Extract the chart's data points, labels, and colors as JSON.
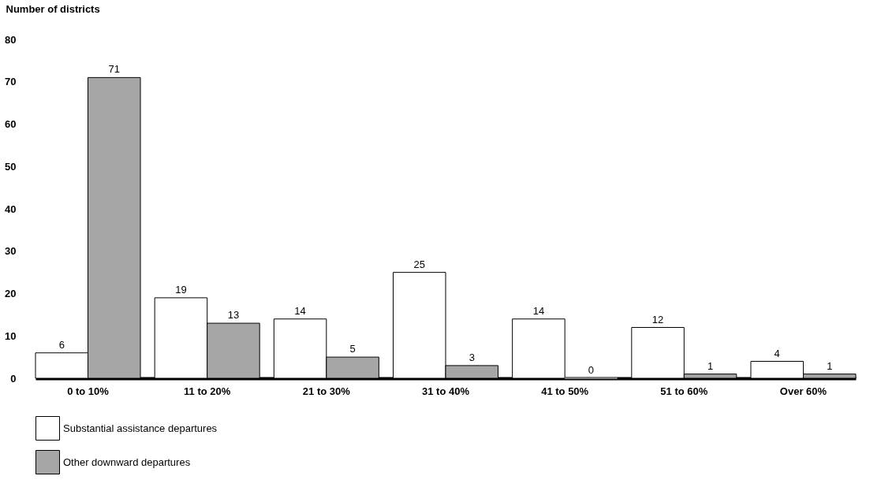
{
  "chart_data": {
    "type": "bar",
    "ylabel": "Number of districts",
    "categories": [
      "0 to 10%",
      "11 to 20%",
      "21 to 30%",
      "31 to 40%",
      "41 to 50%",
      "51 to 60%",
      "Over 60%"
    ],
    "series": [
      {
        "name": "Substantial assistance departures",
        "color": "#ffffff",
        "values": [
          6,
          19,
          14,
          25,
          14,
          12,
          4
        ]
      },
      {
        "name": "Other downward departures",
        "color": "#a6a6a6",
        "values": [
          71,
          13,
          5,
          3,
          0,
          1,
          1
        ]
      }
    ],
    "ylim": [
      0,
      80
    ],
    "yticks": [
      0,
      10,
      20,
      30,
      40,
      50,
      60,
      70,
      80
    ],
    "grid": false,
    "legend": "bottom",
    "data_labels": true
  }
}
